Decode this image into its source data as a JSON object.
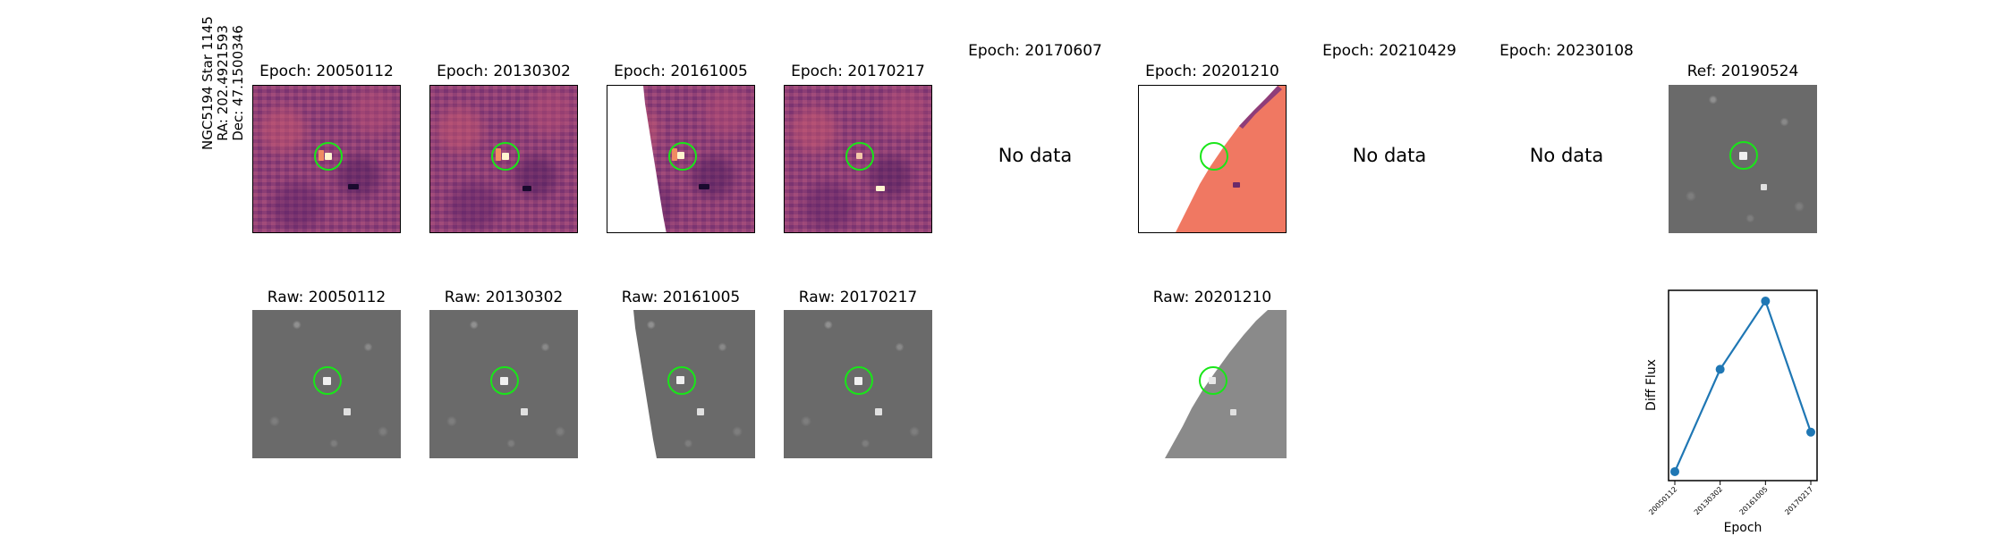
{
  "target": {
    "name_line": "NGC5194 Star 1145",
    "ra_line": "RA: 202.4921593",
    "dec_line": "Dec: 47.1500346"
  },
  "diff_panels": [
    {
      "title": "Epoch: 20050112",
      "has_data": true
    },
    {
      "title": "Epoch: 20130302",
      "has_data": true
    },
    {
      "title": "Epoch: 20161005",
      "has_data": true
    },
    {
      "title": "Epoch: 20170217",
      "has_data": true
    },
    {
      "title": "Epoch: 20170607",
      "has_data": false,
      "no_data_text": "No data"
    },
    {
      "title": "Epoch: 20201210",
      "has_data": true
    },
    {
      "title": "Epoch: 20210429",
      "has_data": false,
      "no_data_text": "No data"
    },
    {
      "title": "Epoch: 20230108",
      "has_data": false,
      "no_data_text": "No data"
    }
  ],
  "reference_panel": {
    "title": "Ref: 20190524"
  },
  "raw_panels": [
    {
      "title": "Raw: 20050112"
    },
    {
      "title": "Raw: 20130302"
    },
    {
      "title": "Raw: 20161005"
    },
    {
      "title": "Raw: 20170217"
    },
    {
      "title": "Raw: 20201210"
    }
  ],
  "colors": {
    "aperture": "#19e619",
    "diff_base": "#8e3d7a",
    "diff_edge": "#f07862",
    "raw_base": "#6a6a6a",
    "line": "#1f77b4"
  },
  "chart_data": {
    "type": "line",
    "x": [
      "20050112",
      "20130302",
      "20161005",
      "20170217"
    ],
    "series": [
      {
        "values": [
          0.05,
          0.62,
          1.0,
          0.27
        ]
      }
    ],
    "xlabel": "Epoch",
    "ylabel": "Diff Flux",
    "ylim": [
      0,
      1.06
    ],
    "grid": false
  }
}
